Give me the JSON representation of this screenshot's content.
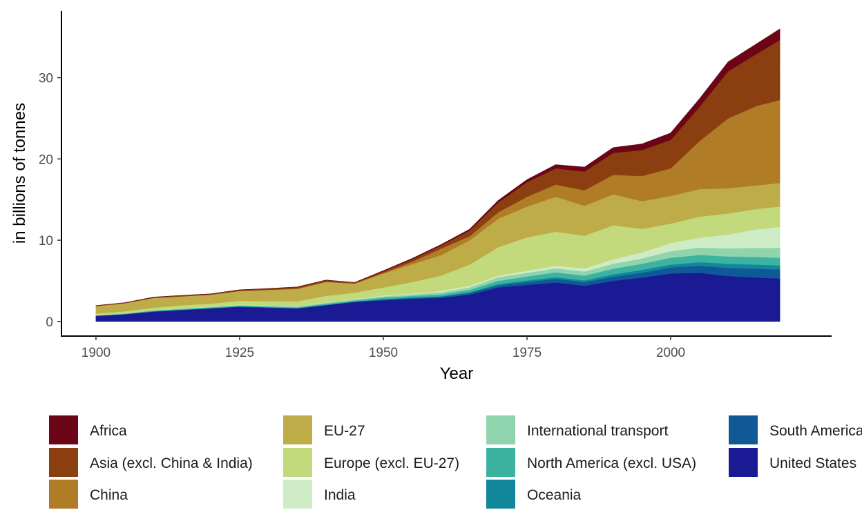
{
  "chart_data": {
    "type": "area",
    "stacked": true,
    "title": "",
    "xlabel": "Year",
    "ylabel": "in billions of tonnes",
    "xlim": [
      1894,
      2028
    ],
    "ylim": [
      -1.8,
      38.2
    ],
    "x_ticks": [
      1900,
      1925,
      1950,
      1975,
      2000
    ],
    "y_ticks": [
      0,
      10,
      20,
      30
    ],
    "grid": false,
    "legend_position": "bottom",
    "x": [
      1900,
      1905,
      1910,
      1915,
      1920,
      1925,
      1930,
      1935,
      1940,
      1945,
      1950,
      1955,
      1960,
      1965,
      1970,
      1975,
      1980,
      1985,
      1990,
      1995,
      2000,
      2005,
      2010,
      2015,
      2019
    ],
    "series": [
      {
        "name": "United States",
        "color": "#1a1a94",
        "values": [
          0.7,
          0.9,
          1.2,
          1.4,
          1.6,
          1.8,
          1.7,
          1.6,
          2.0,
          2.4,
          2.6,
          2.8,
          2.9,
          3.3,
          4.2,
          4.5,
          4.8,
          4.4,
          5.0,
          5.4,
          5.9,
          6.0,
          5.6,
          5.4,
          5.3
        ]
      },
      {
        "name": "South America",
        "color": "#0f5a96",
        "values": [
          0.0,
          0.0,
          0.05,
          0.05,
          0.05,
          0.05,
          0.05,
          0.05,
          0.05,
          0.05,
          0.1,
          0.1,
          0.15,
          0.2,
          0.25,
          0.35,
          0.45,
          0.45,
          0.5,
          0.6,
          0.75,
          0.85,
          1.0,
          1.1,
          1.1
        ]
      },
      {
        "name": "Oceania",
        "color": "#12869a",
        "values": [
          0.0,
          0.0,
          0.0,
          0.0,
          0.0,
          0.0,
          0.0,
          0.0,
          0.0,
          0.0,
          0.05,
          0.05,
          0.05,
          0.1,
          0.15,
          0.2,
          0.2,
          0.2,
          0.3,
          0.35,
          0.35,
          0.45,
          0.5,
          0.5,
          0.5
        ]
      },
      {
        "name": "North America (excl. USA)",
        "color": "#3cb2a1",
        "values": [
          0.05,
          0.05,
          0.1,
          0.1,
          0.1,
          0.1,
          0.1,
          0.1,
          0.15,
          0.15,
          0.2,
          0.2,
          0.25,
          0.3,
          0.4,
          0.5,
          0.6,
          0.6,
          0.7,
          0.75,
          0.85,
          0.9,
          0.9,
          0.95,
          0.95
        ]
      },
      {
        "name": "International transport",
        "color": "#8fd4ad",
        "values": [
          0.05,
          0.05,
          0.05,
          0.05,
          0.05,
          0.1,
          0.1,
          0.1,
          0.1,
          0.1,
          0.15,
          0.2,
          0.25,
          0.3,
          0.45,
          0.45,
          0.5,
          0.5,
          0.6,
          0.65,
          0.8,
          0.9,
          1.0,
          1.1,
          1.2
        ]
      },
      {
        "name": "India",
        "color": "#cdecc6",
        "values": [
          0.0,
          0.0,
          0.0,
          0.05,
          0.05,
          0.05,
          0.05,
          0.05,
          0.05,
          0.05,
          0.1,
          0.1,
          0.15,
          0.2,
          0.2,
          0.25,
          0.3,
          0.4,
          0.55,
          0.75,
          1.0,
          1.2,
          1.7,
          2.3,
          2.6
        ]
      },
      {
        "name": "Europe (excl. EU-27)",
        "color": "#c2da7b",
        "values": [
          0.2,
          0.25,
          0.3,
          0.35,
          0.35,
          0.45,
          0.5,
          0.6,
          0.8,
          0.8,
          1.0,
          1.4,
          1.9,
          2.6,
          3.5,
          4.1,
          4.2,
          4.0,
          4.2,
          2.9,
          2.4,
          2.6,
          2.6,
          2.5,
          2.5
        ]
      },
      {
        "name": "EU-27",
        "color": "#beac48",
        "values": [
          0.9,
          1.0,
          1.2,
          1.1,
          1.1,
          1.2,
          1.4,
          1.5,
          1.7,
          1.1,
          1.7,
          2.2,
          2.5,
          3.0,
          3.5,
          3.8,
          4.3,
          3.7,
          3.8,
          3.4,
          3.4,
          3.4,
          3.1,
          2.9,
          2.9
        ]
      },
      {
        "name": "China",
        "color": "#b07d26",
        "values": [
          0.0,
          0.0,
          0.0,
          0.0,
          0.0,
          0.0,
          0.0,
          0.05,
          0.05,
          0.05,
          0.1,
          0.3,
          0.8,
          0.5,
          0.8,
          1.2,
          1.5,
          1.9,
          2.4,
          3.1,
          3.4,
          5.9,
          8.6,
          9.8,
          10.2
        ]
      },
      {
        "name": "Asia (excl. China & India)",
        "color": "#8b3f10",
        "values": [
          0.05,
          0.05,
          0.1,
          0.1,
          0.1,
          0.15,
          0.15,
          0.2,
          0.2,
          0.1,
          0.2,
          0.3,
          0.4,
          0.7,
          1.2,
          1.8,
          2.0,
          2.3,
          2.7,
          3.2,
          3.5,
          4.2,
          5.8,
          6.4,
          7.4
        ]
      },
      {
        "name": "Africa",
        "color": "#6b0517",
        "values": [
          0.0,
          0.0,
          0.0,
          0.0,
          0.0,
          0.0,
          0.0,
          0.0,
          0.0,
          0.0,
          0.05,
          0.1,
          0.1,
          0.15,
          0.25,
          0.3,
          0.45,
          0.55,
          0.65,
          0.75,
          0.85,
          1.0,
          1.15,
          1.25,
          1.35
        ]
      }
    ]
  },
  "legend": {
    "columns": [
      [
        "Africa",
        "Asia (excl. China & India)",
        "China"
      ],
      [
        "EU-27",
        "Europe (excl. EU-27)",
        "India"
      ],
      [
        "International transport",
        "North America (excl. USA)",
        "Oceania"
      ],
      [
        "South America",
        "United States"
      ]
    ]
  }
}
